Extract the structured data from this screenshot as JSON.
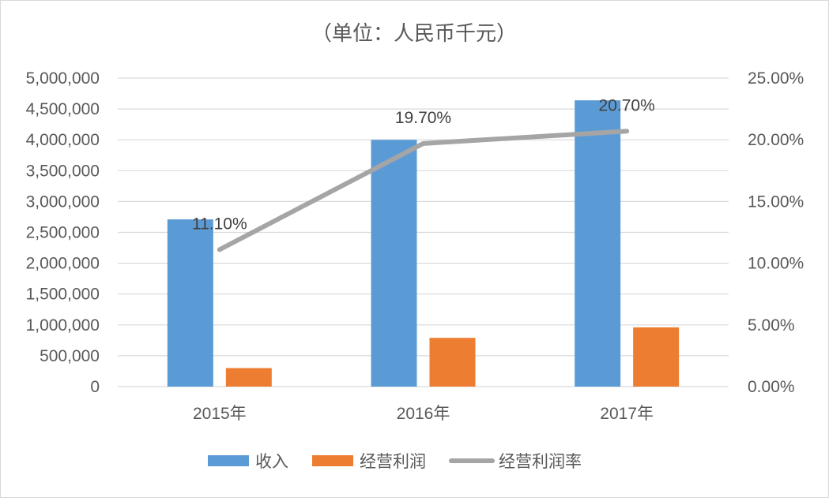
{
  "chart_data": {
    "type": "bar",
    "title": "（单位：人民币千元）",
    "categories": [
      "2015年",
      "2016年",
      "2017年"
    ],
    "series": [
      {
        "name": "收入",
        "type": "bar",
        "axis": "left",
        "color": "#5b9bd5",
        "values": [
          2710000,
          4000000,
          4640000
        ]
      },
      {
        "name": "经营利润",
        "type": "bar",
        "axis": "left",
        "color": "#ed7d31",
        "values": [
          300000,
          790000,
          960000
        ]
      },
      {
        "name": "经营利润率",
        "type": "line",
        "axis": "right",
        "color": "#a5a5a5",
        "values": [
          11.1,
          19.7,
          20.7
        ],
        "data_labels": [
          "11.10%",
          "19.70%",
          "20.70%"
        ]
      }
    ],
    "y_left": {
      "ylim": [
        0,
        5000000
      ],
      "ticks": [
        0,
        500000,
        1000000,
        1500000,
        2000000,
        2500000,
        3000000,
        3500000,
        4000000,
        4500000,
        5000000
      ],
      "tick_labels": [
        "0",
        "500,000",
        "1,000,000",
        "1,500,000",
        "2,000,000",
        "2,500,000",
        "3,000,000",
        "3,500,000",
        "4,000,000",
        "4,500,000",
        "5,000,000"
      ]
    },
    "y_right": {
      "ylim": [
        0,
        25
      ],
      "ticks": [
        0,
        5,
        10,
        15,
        20,
        25
      ],
      "tick_labels": [
        "0.00%",
        "5.00%",
        "10.00%",
        "15.00%",
        "20.00%",
        "25.00%"
      ]
    },
    "grid": true,
    "legend_position": "bottom"
  }
}
